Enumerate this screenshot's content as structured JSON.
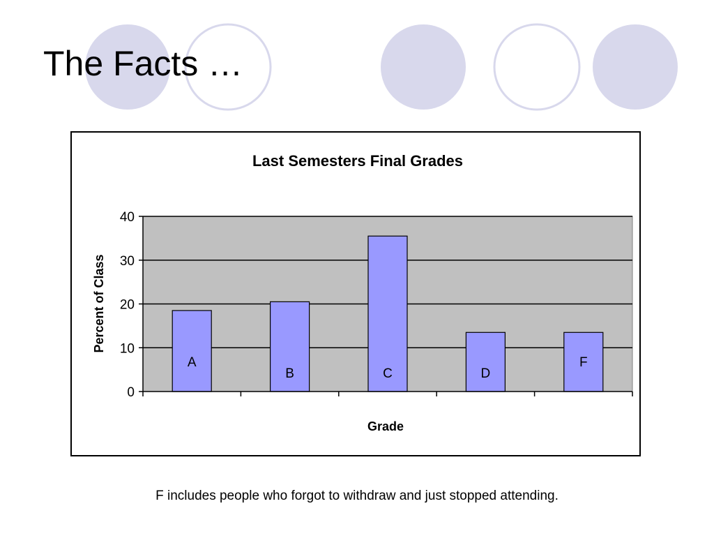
{
  "slide": {
    "title": "The Facts …",
    "footnote": "F includes people who forgot to withdraw and just stopped attending."
  },
  "colors": {
    "circle_fill": "#d8d8ec",
    "circle_stroke": "#c9c9e6",
    "plot_bg": "#c0c0c0",
    "bar_fill": "#9999ff"
  },
  "chart_data": {
    "type": "bar",
    "title": "Last Semesters Final Grades",
    "xlabel": "Grade",
    "ylabel": "Percent of Class",
    "categories": [
      "A",
      "B",
      "C",
      "D",
      "F"
    ],
    "values": [
      18.5,
      20.5,
      35.5,
      13.5,
      13.5
    ],
    "bar_labels": [
      "A",
      "B",
      "C",
      "D",
      "F"
    ],
    "ylim": [
      0,
      40
    ],
    "yticks": [
      "0",
      "10",
      "20",
      "30",
      "40"
    ],
    "grid": true,
    "legend": "none"
  }
}
